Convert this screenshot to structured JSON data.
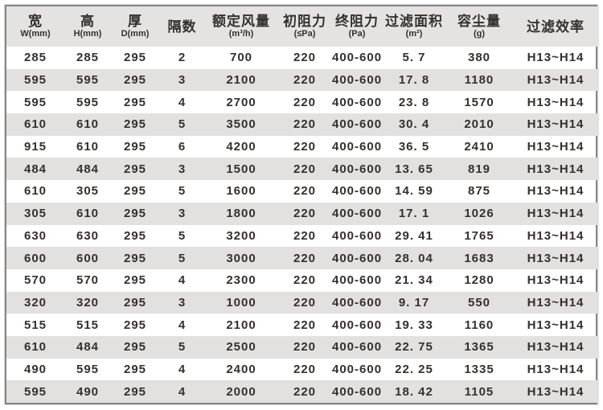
{
  "table": {
    "columns": [
      {
        "label": "宽",
        "sub": "W(mm)"
      },
      {
        "label": "高",
        "sub": "H(mm)"
      },
      {
        "label": "厚",
        "sub": "D(mm)"
      },
      {
        "label": "隔数",
        "sub": ""
      },
      {
        "label": "额定风量",
        "sub": "(m³/h)"
      },
      {
        "label": "初阻力",
        "sub": "(≤Pa)"
      },
      {
        "label": "终阻力",
        "sub": "(Pa)"
      },
      {
        "label": "过滤面积",
        "sub": "(m²)"
      },
      {
        "label": "容尘量",
        "sub": "(g)"
      },
      {
        "label": "过滤效率",
        "sub": ""
      }
    ],
    "rows": [
      [
        "285",
        "285",
        "295",
        "2",
        "700",
        "220",
        "400-600",
        "5. 7",
        "380",
        "H13~H14"
      ],
      [
        "595",
        "595",
        "295",
        "3",
        "2100",
        "220",
        "400-600",
        "17. 8",
        "1180",
        "H13~H14"
      ],
      [
        "595",
        "595",
        "295",
        "4",
        "2700",
        "220",
        "400-600",
        "23. 8",
        "1570",
        "H13~H14"
      ],
      [
        "610",
        "610",
        "295",
        "5",
        "3500",
        "220",
        "400-600",
        "30. 4",
        "2010",
        "H13~H14"
      ],
      [
        "915",
        "610",
        "295",
        "6",
        "4200",
        "220",
        "400-600",
        "36. 5",
        "2410",
        "H13~H14"
      ],
      [
        "484",
        "484",
        "295",
        "3",
        "1500",
        "220",
        "400-600",
        "13. 65",
        "819",
        "H13~H14"
      ],
      [
        "610",
        "305",
        "295",
        "5",
        "1600",
        "220",
        "400-600",
        "14. 59",
        "875",
        "H13~H14"
      ],
      [
        "305",
        "610",
        "295",
        "3",
        "1800",
        "220",
        "400-600",
        "17. 1",
        "1026",
        "H13~H14"
      ],
      [
        "630",
        "630",
        "295",
        "5",
        "3200",
        "220",
        "400-600",
        "29. 41",
        "1765",
        "H13~H14"
      ],
      [
        "600",
        "600",
        "295",
        "5",
        "3000",
        "220",
        "400-600",
        "28. 04",
        "1683",
        "H13~H14"
      ],
      [
        "570",
        "570",
        "295",
        "4",
        "2300",
        "220",
        "400-600",
        "21. 34",
        "1280",
        "H13~H14"
      ],
      [
        "320",
        "320",
        "295",
        "3",
        "1000",
        "220",
        "400-600",
        "9. 17",
        "550",
        "H13~H14"
      ],
      [
        "515",
        "515",
        "295",
        "4",
        "2100",
        "220",
        "400-600",
        "19. 33",
        "1160",
        "H13~H14"
      ],
      [
        "610",
        "484",
        "295",
        "5",
        "2500",
        "220",
        "400-600",
        "22. 75",
        "1365",
        "H13~H14"
      ],
      [
        "490",
        "595",
        "295",
        "4",
        "2400",
        "220",
        "400-600",
        "22. 25",
        "1335",
        "H13~H14"
      ],
      [
        "595",
        "490",
        "295",
        "4",
        "2000",
        "220",
        "400-600",
        "18. 42",
        "1105",
        "H13~H14"
      ]
    ]
  },
  "colors": {
    "header_bg": "#e4e3e1",
    "stripe_bg": "#e2e1df",
    "border": "#868686",
    "text": "#35302c"
  }
}
